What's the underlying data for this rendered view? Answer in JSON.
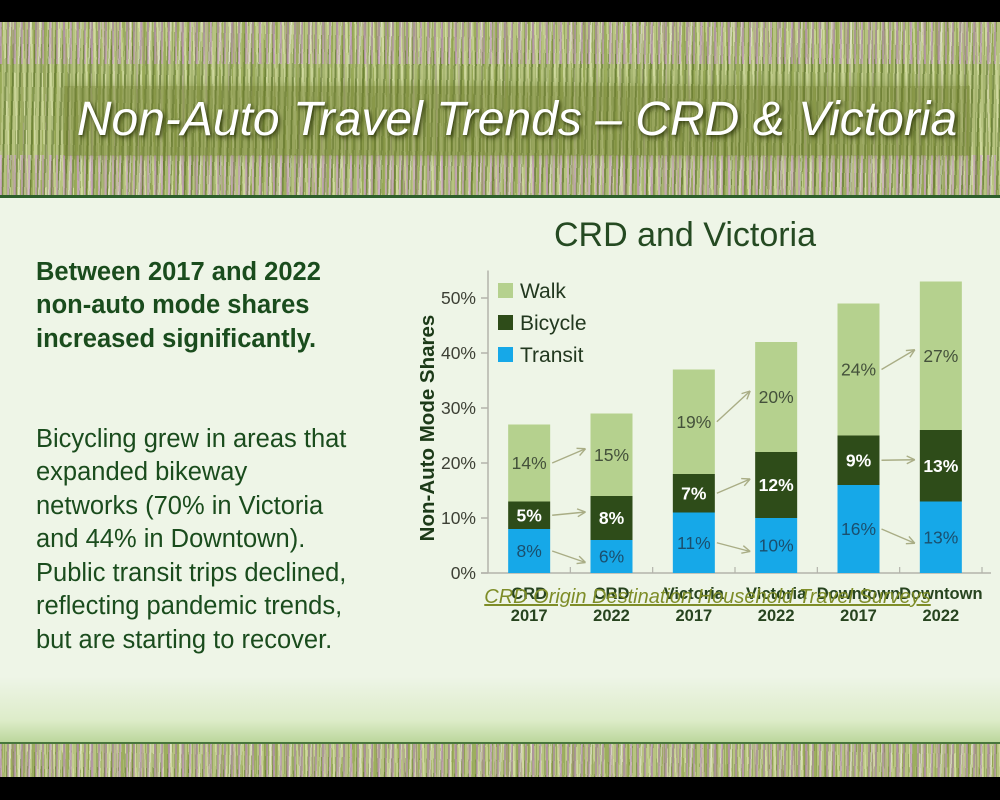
{
  "slide": {
    "title": "Non-Auto Travel Trends – CRD & Victoria",
    "intro_bold": "Between 2017 and 2022\nnon-auto mode shares\nincreased significantly.",
    "body_text": "Bicycling grew in areas that\nexpanded bikeway\nnetworks (70% in Victoria\nand 44% in Downtown).\nPublic transit trips declined,\nreflecting pandemic trends,\nbut are starting to recover.",
    "source_link": "CRD Origin Destination Household Travel Surveys",
    "colors": {
      "body_text": "#1a4c1d",
      "content_bg": "#eef5e7",
      "link": "#7e8d28",
      "title_text": "#ffffff"
    }
  },
  "chart_data": {
    "type": "bar",
    "stacked": true,
    "title": "CRD and Victoria",
    "ylabel": "Non-Auto Mode Shares",
    "ylim": [
      0,
      55
    ],
    "ytick_step": 10,
    "ytick_suffix": "%",
    "grid": false,
    "categories": [
      "CRD\n2017",
      "CRD\n2022",
      "Victoria\n2017",
      "Victoria\n2022",
      "Downtown\n2017",
      "Downtown\n2022"
    ],
    "series": [
      {
        "name": "Transit",
        "color": "#16a8e8",
        "label_color": "#1a4f6e",
        "bold_labels": false,
        "values": [
          8,
          6,
          11,
          10,
          16,
          13
        ]
      },
      {
        "name": "Bicycle",
        "color": "#2e4c19",
        "label_color": "#ffffff",
        "bold_labels": true,
        "values": [
          5,
          8,
          7,
          12,
          9,
          13
        ]
      },
      {
        "name": "Walk",
        "color": "#b5d18e",
        "label_color": "#44513b",
        "bold_labels": false,
        "values": [
          14,
          15,
          19,
          20,
          24,
          27
        ]
      }
    ],
    "label_suffix": "%",
    "legend": {
      "position": "top-left-inside",
      "order": [
        "Walk",
        "Bicycle",
        "Transit"
      ]
    },
    "change_arrows": {
      "pairs": [
        [
          0,
          1
        ],
        [
          2,
          3
        ],
        [
          4,
          5
        ]
      ],
      "color": "#a9ad85"
    },
    "axis_color": "#b3b3ab",
    "tick_label_color": "#3d4035",
    "category_label_color": "#27441f",
    "title_color": "#254a22",
    "ylabel_color": "#1c3a18",
    "legend_text_color": "#22381f"
  }
}
